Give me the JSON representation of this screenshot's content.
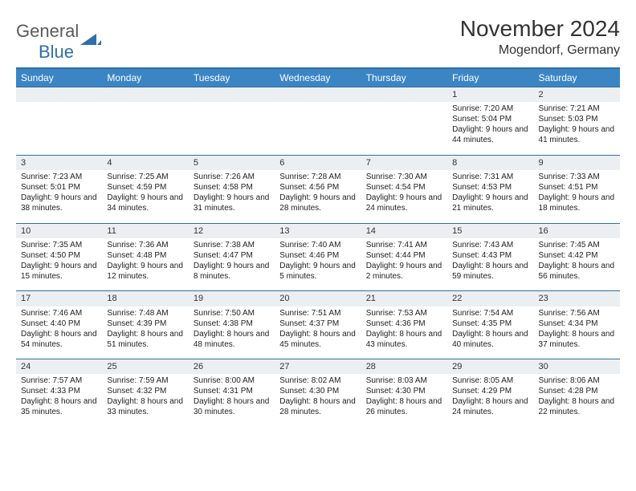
{
  "logo": {
    "general": "General",
    "blue": "Blue"
  },
  "title": "November 2024",
  "location": "Mogendorf, Germany",
  "colors": {
    "accent": "#3b85c4",
    "rule": "#2f6fa8",
    "daynum_bg": "#eceff1",
    "text": "#222222",
    "logo_gray": "#5a5a5a"
  },
  "days_of_week": [
    "Sunday",
    "Monday",
    "Tuesday",
    "Wednesday",
    "Thursday",
    "Friday",
    "Saturday"
  ],
  "weeks": [
    [
      null,
      null,
      null,
      null,
      null,
      {
        "n": "1",
        "sr": "7:20 AM",
        "ss": "5:04 PM",
        "dl": "9 hours and 44 minutes."
      },
      {
        "n": "2",
        "sr": "7:21 AM",
        "ss": "5:03 PM",
        "dl": "9 hours and 41 minutes."
      }
    ],
    [
      {
        "n": "3",
        "sr": "7:23 AM",
        "ss": "5:01 PM",
        "dl": "9 hours and 38 minutes."
      },
      {
        "n": "4",
        "sr": "7:25 AM",
        "ss": "4:59 PM",
        "dl": "9 hours and 34 minutes."
      },
      {
        "n": "5",
        "sr": "7:26 AM",
        "ss": "4:58 PM",
        "dl": "9 hours and 31 minutes."
      },
      {
        "n": "6",
        "sr": "7:28 AM",
        "ss": "4:56 PM",
        "dl": "9 hours and 28 minutes."
      },
      {
        "n": "7",
        "sr": "7:30 AM",
        "ss": "4:54 PM",
        "dl": "9 hours and 24 minutes."
      },
      {
        "n": "8",
        "sr": "7:31 AM",
        "ss": "4:53 PM",
        "dl": "9 hours and 21 minutes."
      },
      {
        "n": "9",
        "sr": "7:33 AM",
        "ss": "4:51 PM",
        "dl": "9 hours and 18 minutes."
      }
    ],
    [
      {
        "n": "10",
        "sr": "7:35 AM",
        "ss": "4:50 PM",
        "dl": "9 hours and 15 minutes."
      },
      {
        "n": "11",
        "sr": "7:36 AM",
        "ss": "4:48 PM",
        "dl": "9 hours and 12 minutes."
      },
      {
        "n": "12",
        "sr": "7:38 AM",
        "ss": "4:47 PM",
        "dl": "9 hours and 8 minutes."
      },
      {
        "n": "13",
        "sr": "7:40 AM",
        "ss": "4:46 PM",
        "dl": "9 hours and 5 minutes."
      },
      {
        "n": "14",
        "sr": "7:41 AM",
        "ss": "4:44 PM",
        "dl": "9 hours and 2 minutes."
      },
      {
        "n": "15",
        "sr": "7:43 AM",
        "ss": "4:43 PM",
        "dl": "8 hours and 59 minutes."
      },
      {
        "n": "16",
        "sr": "7:45 AM",
        "ss": "4:42 PM",
        "dl": "8 hours and 56 minutes."
      }
    ],
    [
      {
        "n": "17",
        "sr": "7:46 AM",
        "ss": "4:40 PM",
        "dl": "8 hours and 54 minutes."
      },
      {
        "n": "18",
        "sr": "7:48 AM",
        "ss": "4:39 PM",
        "dl": "8 hours and 51 minutes."
      },
      {
        "n": "19",
        "sr": "7:50 AM",
        "ss": "4:38 PM",
        "dl": "8 hours and 48 minutes."
      },
      {
        "n": "20",
        "sr": "7:51 AM",
        "ss": "4:37 PM",
        "dl": "8 hours and 45 minutes."
      },
      {
        "n": "21",
        "sr": "7:53 AM",
        "ss": "4:36 PM",
        "dl": "8 hours and 43 minutes."
      },
      {
        "n": "22",
        "sr": "7:54 AM",
        "ss": "4:35 PM",
        "dl": "8 hours and 40 minutes."
      },
      {
        "n": "23",
        "sr": "7:56 AM",
        "ss": "4:34 PM",
        "dl": "8 hours and 37 minutes."
      }
    ],
    [
      {
        "n": "24",
        "sr": "7:57 AM",
        "ss": "4:33 PM",
        "dl": "8 hours and 35 minutes."
      },
      {
        "n": "25",
        "sr": "7:59 AM",
        "ss": "4:32 PM",
        "dl": "8 hours and 33 minutes."
      },
      {
        "n": "26",
        "sr": "8:00 AM",
        "ss": "4:31 PM",
        "dl": "8 hours and 30 minutes."
      },
      {
        "n": "27",
        "sr": "8:02 AM",
        "ss": "4:30 PM",
        "dl": "8 hours and 28 minutes."
      },
      {
        "n": "28",
        "sr": "8:03 AM",
        "ss": "4:30 PM",
        "dl": "8 hours and 26 minutes."
      },
      {
        "n": "29",
        "sr": "8:05 AM",
        "ss": "4:29 PM",
        "dl": "8 hours and 24 minutes."
      },
      {
        "n": "30",
        "sr": "8:06 AM",
        "ss": "4:28 PM",
        "dl": "8 hours and 22 minutes."
      }
    ]
  ],
  "labels": {
    "sunrise": "Sunrise: ",
    "sunset": "Sunset: ",
    "daylight": "Daylight: "
  }
}
